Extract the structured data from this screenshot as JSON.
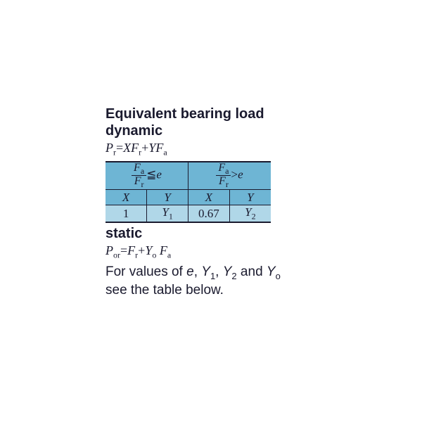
{
  "heading1": "Equivalent bearing load",
  "heading2": "dynamic",
  "formula_dynamic_html": "<span class='italic'>P</span><span class='sub'>r</span>=<span class='italic'>XF</span><span class='sub'>r</span>+<span class='italic'>YF</span><span class='sub'>a</span>",
  "table": {
    "colors": {
      "header_bg": "#6eb5d4",
      "body_bg": "#b0d7e8",
      "border": "#1a1a2e"
    },
    "header_left_html": "<span class='frac'><span class='num'><span class='italic'>F</span><span class='sub'>a</span></span><span class='den'><span class='italic'>F</span><span class='sub'>r</span></span></span>&#8806;<span class='italic'>e</span>",
    "header_right_html": "<span class='frac'><span class='num'><span class='italic'>F</span><span class='sub'>a</span></span><span class='den'><span class='italic'>F</span><span class='sub'>r</span></span></span>&gt;<span class='italic'>e</span>",
    "row2": {
      "c1": "X",
      "c2": "Y",
      "c3": "X",
      "c4": "Y"
    },
    "row3": {
      "c1": "1",
      "c2_html": "<span class='italic'>Y</span><span class='sub'>1</span>",
      "c3": "0.67",
      "c4_html": "<span class='italic'>Y</span><span class='sub'>2</span>"
    }
  },
  "heading3": "static",
  "formula_static_html": "<span class='italic'>P</span><span class='sub'>or</span>=<span class='italic'>F</span><span class='sub'>r</span>+<span class='italic'>Y</span><span class='sub'>o</span> <span class='italic'>F</span><span class='sub'>a</span>",
  "note_html": "For values of <span class='italic'>e</span>, <span class='italic'>Y</span><span style='font-size:13px;vertical-align:sub'>1</span>, <span class='italic'>Y</span><span style='font-size:13px;vertical-align:sub'>2</span> and <span class='italic'>Y</span><span style='font-size:13px;vertical-align:sub'>o</span><br>see the table below."
}
